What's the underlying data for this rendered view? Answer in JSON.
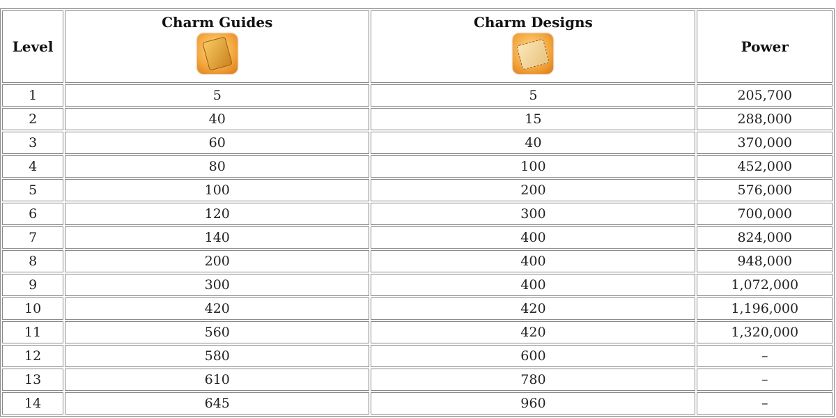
{
  "table": {
    "headers": {
      "level": "Level",
      "guides": "Charm Guides",
      "designs": "Charm Designs",
      "power": "Power"
    },
    "icons": {
      "guides": "charm-guide-book-icon",
      "designs": "charm-design-scroll-icon"
    },
    "rows": [
      {
        "level": "1",
        "guides": "5",
        "designs": "5",
        "power": "205,700"
      },
      {
        "level": "2",
        "guides": "40",
        "designs": "15",
        "power": "288,000"
      },
      {
        "level": "3",
        "guides": "60",
        "designs": "40",
        "power": "370,000"
      },
      {
        "level": "4",
        "guides": "80",
        "designs": "100",
        "power": "452,000"
      },
      {
        "level": "5",
        "guides": "100",
        "designs": "200",
        "power": "576,000"
      },
      {
        "level": "6",
        "guides": "120",
        "designs": "300",
        "power": "700,000"
      },
      {
        "level": "7",
        "guides": "140",
        "designs": "400",
        "power": "824,000"
      },
      {
        "level": "8",
        "guides": "200",
        "designs": "400",
        "power": "948,000"
      },
      {
        "level": "9",
        "guides": "300",
        "designs": "400",
        "power": "1,072,000"
      },
      {
        "level": "10",
        "guides": "420",
        "designs": "420",
        "power": "1,196,000"
      },
      {
        "level": "11",
        "guides": "560",
        "designs": "420",
        "power": "1,320,000"
      },
      {
        "level": "12",
        "guides": "580",
        "designs": "600",
        "power": "–"
      },
      {
        "level": "13",
        "guides": "610",
        "designs": "780",
        "power": "–"
      },
      {
        "level": "14",
        "guides": "645",
        "designs": "960",
        "power": "–"
      }
    ]
  }
}
